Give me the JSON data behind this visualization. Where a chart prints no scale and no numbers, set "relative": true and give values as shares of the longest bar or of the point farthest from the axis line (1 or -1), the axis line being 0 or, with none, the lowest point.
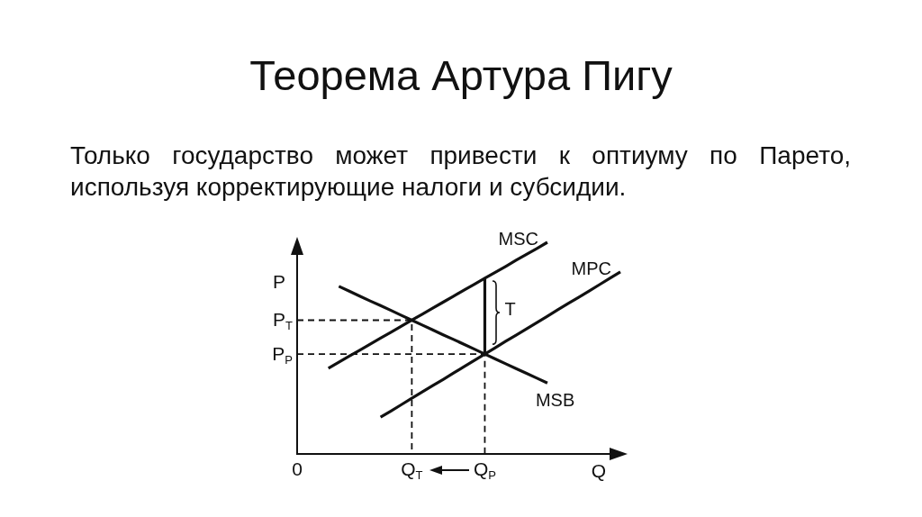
{
  "chart_data": {
    "type": "line",
    "title": "Теорема Артура Пигу",
    "subtitle": "Только государство может привести к оптиуму по Парето, используя корректирующие налоги и субсидии.",
    "xlabel": "Q",
    "ylabel": "P",
    "relative": true,
    "marker": "none",
    "categories": [
      "0",
      null,
      null,
      null,
      null,
      null,
      null,
      null,
      null,
      null,
      null,
      "Q$_{T}$",
      null,
      null,
      null,
      null,
      null,
      null,
      "Q$_{P}$",
      null,
      null,
      null,
      null,
      null,
      null,
      null,
      null,
      null,
      null,
      null,
      null,
      null
    ],
    "annotations": [
      {
        "text": "P$_{T}$",
        "x": "0",
        "y": 0.632
      },
      {
        "text": "P$_{P}$",
        "x": "0",
        "y": 0.472
      },
      {
        "text": "T",
        "x": "Q$_{P}$",
        "y": 0.67
      }
    ],
    "series": [
      {
        "name": "MSC",
        "color": "#111111",
        "line_style": "solid",
        "values": [
          null,
          null,
          null,
          0.405,
          0.434,
          0.462,
          0.49,
          0.519,
          0.547,
          0.575,
          0.604,
          0.632,
          0.66,
          0.689,
          0.717,
          0.745,
          0.774,
          0.802,
          0.83,
          0.858,
          0.886,
          0.915,
          0.943,
          0.971,
          1,
          null,
          null,
          null,
          null,
          null,
          null,
          null
        ]
      },
      {
        "name": "MPC",
        "color": "#111111",
        "line_style": "solid",
        "values": [
          null,
          null,
          null,
          null,
          null,
          null,
          null,
          null,
          0.174,
          0.203,
          0.233,
          0.263,
          0.293,
          0.323,
          0.352,
          0.382,
          0.412,
          0.442,
          0.472,
          0.502,
          0.532,
          0.561,
          0.591,
          0.621,
          0.651,
          0.681,
          0.711,
          0.74,
          0.77,
          0.8,
          0.83,
          0.86
        ]
      },
      {
        "name": "MSB",
        "color": "#111111",
        "line_style": "solid",
        "values": [
          null,
          null,
          null,
          null,
          0.792,
          0.769,
          0.746,
          0.723,
          0.701,
          0.678,
          0.655,
          0.632,
          0.609,
          0.586,
          0.563,
          0.541,
          0.518,
          0.495,
          0.472,
          0.449,
          0.426,
          0.403,
          0.381,
          0.358,
          0.335,
          null,
          null,
          null,
          null,
          null,
          null,
          null
        ]
      },
      {
        "color": "#111111",
        "line_style": "solid",
        "x": [
          "Q$_{P}$",
          "Q$_{P}$"
        ],
        "values": [
          0.472,
          0.83
        ]
      },
      {
        "color": "#111111",
        "line_style": "dashed",
        "x": [
          "0",
          "Q$_{T}$",
          "Q$_{T}$"
        ],
        "values": [
          0.632,
          0.632,
          0
        ]
      },
      {
        "color": "#111111",
        "line_style": "dashed",
        "x": [
          "0",
          "Q$_{P}$",
          "Q$_{P}$"
        ],
        "values": [
          0.472,
          0.472,
          0
        ]
      }
    ]
  }
}
